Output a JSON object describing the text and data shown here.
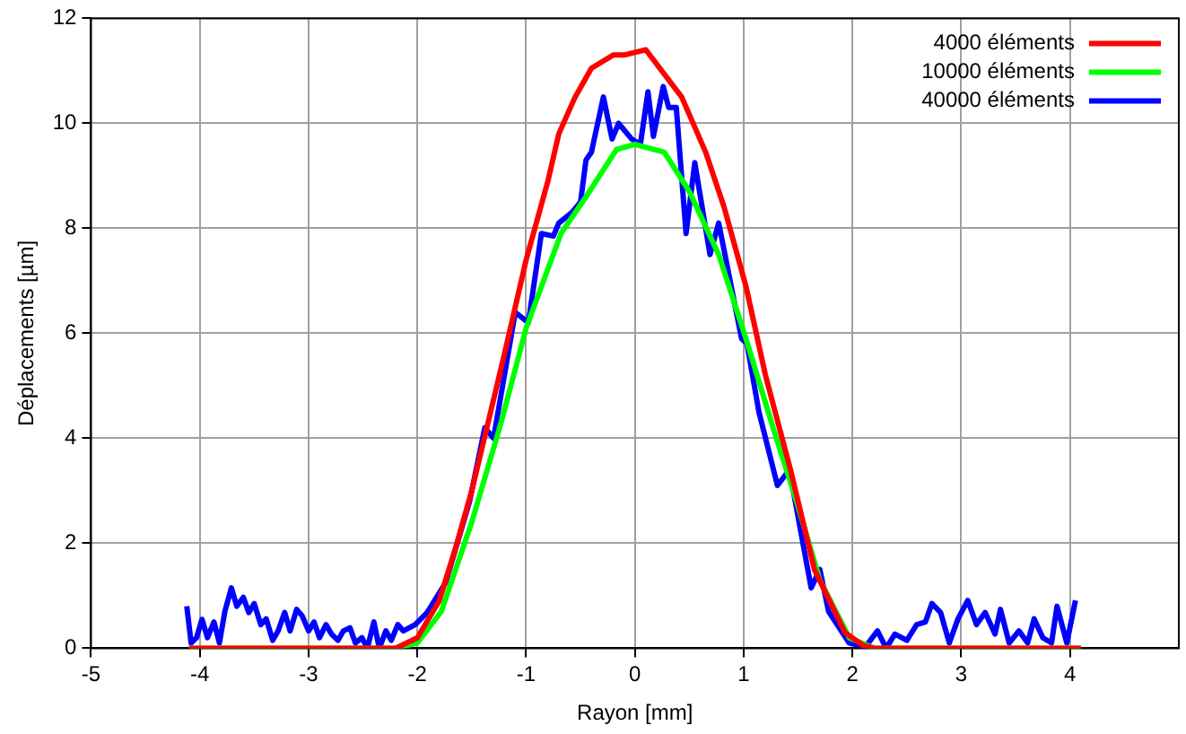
{
  "chart_data": {
    "type": "line",
    "xlabel": "Rayon [mm]",
    "ylabel": "Déplacements [µm]",
    "xlim": [
      -5,
      5
    ],
    "xticks": [
      -5,
      -4,
      -3,
      -2,
      -1,
      0,
      1,
      2,
      3,
      4
    ],
    "ylim": [
      0,
      12
    ],
    "yticks": [
      0,
      2,
      4,
      6,
      8,
      10,
      12
    ],
    "grid": true,
    "legend": "top right",
    "marker": "none",
    "line_style": "solid",
    "series": [
      {
        "name": "4000 éléments",
        "color": "#ff0000",
        "x": [
          -4.1,
          -2.2,
          -2,
          -1.8,
          -1.65,
          -1.5,
          -1.35,
          -1.2,
          -1,
          -0.8,
          -0.7,
          -0.55,
          -0.4,
          -0.2,
          -0.1,
          0,
          0.1,
          0.43,
          0.65,
          0.82,
          1.02,
          1.2,
          1.43,
          1.65,
          1.93,
          2.1,
          2.2,
          4.1
        ],
        "values": [
          0,
          0,
          0.2,
          0.9,
          1.9,
          3,
          4.3,
          5.6,
          7.4,
          8.9,
          9.8,
          10.5,
          11.05,
          11.3,
          11.3,
          11.35,
          11.4,
          10.5,
          9.45,
          8.4,
          6.9,
          5.2,
          3.4,
          1.5,
          0.3,
          0.05,
          0,
          0
        ]
      },
      {
        "name": "10000 éléments",
        "color": "#00ff00",
        "x": [
          -4.1,
          -2.2,
          -2,
          -1.78,
          -1.5,
          -1.23,
          -1,
          -0.68,
          -0.45,
          -0.17,
          0,
          0.27,
          0.5,
          0.77,
          1.02,
          1.27,
          1.5,
          1.7,
          1.97,
          2.2,
          4.1
        ],
        "values": [
          0,
          0,
          0.1,
          0.7,
          2.4,
          4.3,
          6.1,
          7.9,
          8.6,
          9.5,
          9.6,
          9.45,
          8.7,
          7.5,
          5.9,
          4.2,
          2.7,
          1.3,
          0.2,
          0,
          0
        ]
      },
      {
        "name": "40000 éléments",
        "color": "#0000ff",
        "x": [
          -4.12,
          -4.08,
          -4.03,
          -3.98,
          -3.93,
          -3.87,
          -3.82,
          -3.77,
          -3.71,
          -3.66,
          -3.6,
          -3.55,
          -3.5,
          -3.44,
          -3.39,
          -3.33,
          -3.28,
          -3.22,
          -3.17,
          -3.11,
          -3.06,
          -3,
          -2.95,
          -2.9,
          -2.84,
          -2.79,
          -2.73,
          -2.68,
          -2.62,
          -2.57,
          -2.51,
          -2.46,
          -2.4,
          -2.35,
          -2.29,
          -2.24,
          -2.18,
          -2.13,
          -2.02,
          -1.91,
          -1.74,
          -1.52,
          -1.38,
          -1.3,
          -1.1,
          -0.98,
          -0.86,
          -0.75,
          -0.7,
          -0.58,
          -0.5,
          -0.45,
          -0.4,
          -0.29,
          -0.21,
          -0.15,
          -0.07,
          -0.03,
          0.05,
          0.12,
          0.17,
          0.26,
          0.31,
          0.38,
          0.47,
          0.55,
          0.69,
          0.77,
          0.98,
          1.03,
          1.14,
          1.31,
          1.42,
          1.62,
          1.7,
          1.78,
          1.97,
          2.12,
          2.23,
          2.31,
          2.39,
          2.5,
          2.59,
          2.67,
          2.73,
          2.81,
          2.89,
          2.97,
          3.06,
          3.14,
          3.22,
          3.31,
          3.36,
          3.44,
          3.53,
          3.61,
          3.67,
          3.75,
          3.83,
          3.88,
          3.97,
          4.05
        ],
        "values": [
          0.8,
          0.1,
          0.2,
          0.55,
          0.2,
          0.5,
          0.1,
          0.7,
          1.15,
          0.8,
          0.97,
          0.68,
          0.85,
          0.45,
          0.56,
          0.15,
          0.33,
          0.68,
          0.33,
          0.74,
          0.62,
          0.33,
          0.5,
          0.2,
          0.45,
          0.27,
          0.15,
          0.33,
          0.39,
          0.1,
          0.2,
          0,
          0.5,
          0,
          0.33,
          0.15,
          0.45,
          0.33,
          0.45,
          0.68,
          1.25,
          2.8,
          4.2,
          4,
          6.4,
          6.2,
          7.9,
          7.85,
          8.1,
          8.3,
          8.5,
          9.3,
          9.45,
          10.5,
          9.7,
          10,
          9.8,
          9.7,
          9.6,
          10.6,
          9.75,
          10.7,
          10.3,
          10.3,
          7.9,
          9.25,
          7.5,
          8.1,
          5.9,
          5.8,
          4.5,
          3.1,
          3.4,
          1.15,
          1.5,
          0.7,
          0.1,
          0.03,
          0.33,
          0,
          0.27,
          0.15,
          0.45,
          0.5,
          0.85,
          0.68,
          0.1,
          0.56,
          0.91,
          0.45,
          0.68,
          0.27,
          0.74,
          0.1,
          0.33,
          0.1,
          0.56,
          0.2,
          0.1,
          0.8,
          0.1,
          0.91
        ]
      }
    ]
  }
}
